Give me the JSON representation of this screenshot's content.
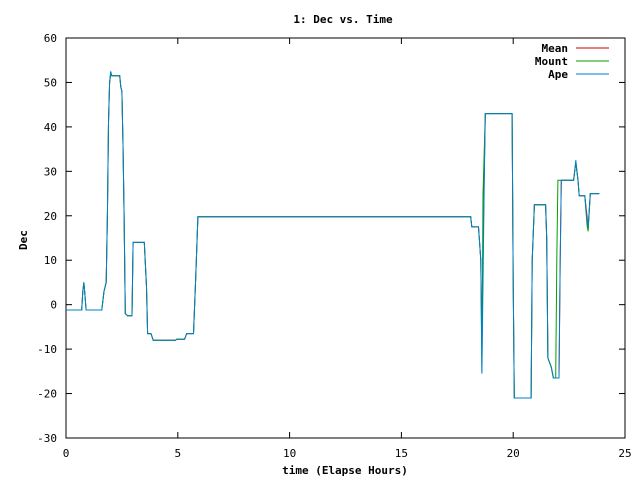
{
  "chart_data": {
    "type": "line",
    "title": "1: Dec vs. Time",
    "xlabel": "time (Elapse Hours)",
    "ylabel": "Dec",
    "xlim": [
      0,
      25
    ],
    "ylim": [
      -30,
      60
    ],
    "xticks": [
      0,
      5,
      10,
      15,
      20,
      25
    ],
    "yticks": [
      -30,
      -20,
      -10,
      0,
      10,
      20,
      30,
      40,
      50,
      60
    ],
    "grid": false,
    "legend_position": "top-right",
    "series": [
      {
        "name": "Mean",
        "color": "#cc0000",
        "points": [
          [
            0,
            -1.2
          ],
          [
            0.7,
            -1.2
          ],
          [
            0.75,
            3
          ],
          [
            0.8,
            5
          ],
          [
            0.85,
            2
          ],
          [
            0.9,
            -1.2
          ],
          [
            1.6,
            -1.2
          ],
          [
            1.7,
            3
          ],
          [
            1.8,
            5
          ],
          [
            1.85,
            20
          ],
          [
            1.9,
            41
          ],
          [
            1.95,
            50
          ],
          [
            2.0,
            52
          ],
          [
            2.05,
            51.5
          ],
          [
            2.4,
            51.5
          ],
          [
            2.45,
            49
          ],
          [
            2.5,
            48
          ],
          [
            2.55,
            36
          ],
          [
            2.6,
            20
          ],
          [
            2.65,
            -2
          ],
          [
            2.75,
            -2.5
          ],
          [
            2.95,
            -2.5
          ],
          [
            3.0,
            14
          ],
          [
            3.5,
            14
          ],
          [
            3.6,
            4
          ],
          [
            3.65,
            -6.5
          ],
          [
            3.8,
            -6.5
          ],
          [
            3.9,
            -8
          ],
          [
            4.9,
            -8
          ],
          [
            4.95,
            -7.8
          ],
          [
            5.3,
            -7.8
          ],
          [
            5.4,
            -6.5
          ],
          [
            5.7,
            -6.5
          ],
          [
            5.8,
            6
          ],
          [
            5.9,
            19.8
          ],
          [
            18.1,
            19.8
          ],
          [
            18.15,
            17.5
          ],
          [
            18.45,
            17.5
          ],
          [
            18.55,
            10
          ],
          [
            18.6,
            -7
          ],
          [
            18.7,
            28
          ],
          [
            18.75,
            43
          ],
          [
            19.95,
            43
          ],
          [
            20.0,
            5
          ],
          [
            20.05,
            -21
          ],
          [
            20.8,
            -21
          ],
          [
            20.85,
            10
          ],
          [
            20.95,
            22.5
          ],
          [
            21.45,
            22.5
          ],
          [
            21.5,
            15
          ],
          [
            21.55,
            -12
          ],
          [
            21.7,
            -14
          ],
          [
            21.8,
            -16.5
          ],
          [
            22.05,
            -16.5
          ],
          [
            22.1,
            10
          ],
          [
            22.15,
            28
          ],
          [
            22.7,
            28
          ],
          [
            22.75,
            30
          ],
          [
            22.8,
            32
          ],
          [
            22.9,
            28
          ],
          [
            22.95,
            24.5
          ],
          [
            23.2,
            24.5
          ],
          [
            23.3,
            20
          ],
          [
            23.35,
            17
          ],
          [
            23.45,
            25
          ],
          [
            23.85,
            25
          ]
        ]
      },
      {
        "name": "Mount",
        "color": "#00a000",
        "points": [
          [
            0,
            -1.2
          ],
          [
            0.7,
            -1.2
          ],
          [
            0.75,
            3
          ],
          [
            0.8,
            5
          ],
          [
            0.85,
            2
          ],
          [
            0.9,
            -1.2
          ],
          [
            1.6,
            -1.2
          ],
          [
            1.7,
            3
          ],
          [
            1.8,
            5
          ],
          [
            1.85,
            20
          ],
          [
            1.9,
            41
          ],
          [
            1.95,
            50
          ],
          [
            2.0,
            52
          ],
          [
            2.05,
            51.5
          ],
          [
            2.4,
            51.5
          ],
          [
            2.45,
            49
          ],
          [
            2.5,
            48
          ],
          [
            2.55,
            36
          ],
          [
            2.6,
            20
          ],
          [
            2.65,
            -2
          ],
          [
            2.75,
            -2.5
          ],
          [
            2.95,
            -2.5
          ],
          [
            3.0,
            14
          ],
          [
            3.5,
            14
          ],
          [
            3.6,
            4
          ],
          [
            3.65,
            -6.5
          ],
          [
            3.8,
            -6.5
          ],
          [
            3.9,
            -8
          ],
          [
            4.9,
            -8
          ],
          [
            4.95,
            -7.8
          ],
          [
            5.3,
            -7.8
          ],
          [
            5.4,
            -6.5
          ],
          [
            5.7,
            -6.5
          ],
          [
            5.8,
            6
          ],
          [
            5.9,
            19.8
          ],
          [
            18.1,
            19.8
          ],
          [
            18.15,
            17.5
          ],
          [
            18.45,
            17.5
          ],
          [
            18.55,
            10
          ],
          [
            18.6,
            -15
          ],
          [
            18.65,
            25
          ],
          [
            18.75,
            43
          ],
          [
            19.95,
            43
          ],
          [
            20.0,
            5
          ],
          [
            20.05,
            -21
          ],
          [
            20.8,
            -21
          ],
          [
            20.85,
            10
          ],
          [
            20.95,
            22.5
          ],
          [
            21.45,
            22.5
          ],
          [
            21.5,
            15
          ],
          [
            21.55,
            -12
          ],
          [
            21.7,
            -14
          ],
          [
            21.8,
            -16.5
          ],
          [
            21.9,
            -16.5
          ],
          [
            21.95,
            10
          ],
          [
            22.0,
            28
          ],
          [
            22.7,
            28
          ],
          [
            22.75,
            30
          ],
          [
            22.8,
            32
          ],
          [
            22.9,
            28
          ],
          [
            22.95,
            24.5
          ],
          [
            23.2,
            24.5
          ],
          [
            23.3,
            18
          ],
          [
            23.35,
            16.5
          ],
          [
            23.45,
            25
          ],
          [
            23.85,
            25
          ]
        ]
      },
      {
        "name": "Ape",
        "color": "#0080cc",
        "points": [
          [
            0,
            -1.2
          ],
          [
            0.7,
            -1.2
          ],
          [
            0.75,
            3
          ],
          [
            0.8,
            5
          ],
          [
            0.85,
            2
          ],
          [
            0.9,
            -1.2
          ],
          [
            1.6,
            -1.2
          ],
          [
            1.7,
            3
          ],
          [
            1.8,
            5
          ],
          [
            1.85,
            20
          ],
          [
            1.9,
            41
          ],
          [
            1.95,
            50
          ],
          [
            2.0,
            52.5
          ],
          [
            2.05,
            51.5
          ],
          [
            2.4,
            51.5
          ],
          [
            2.45,
            49
          ],
          [
            2.5,
            48
          ],
          [
            2.55,
            36
          ],
          [
            2.6,
            20
          ],
          [
            2.65,
            -2
          ],
          [
            2.75,
            -2.5
          ],
          [
            2.95,
            -2.5
          ],
          [
            3.0,
            14
          ],
          [
            3.5,
            14
          ],
          [
            3.6,
            4
          ],
          [
            3.65,
            -6.5
          ],
          [
            3.8,
            -6.5
          ],
          [
            3.9,
            -8
          ],
          [
            4.9,
            -8
          ],
          [
            4.95,
            -7.8
          ],
          [
            5.3,
            -7.8
          ],
          [
            5.4,
            -6.5
          ],
          [
            5.7,
            -6.5
          ],
          [
            5.8,
            6
          ],
          [
            5.9,
            19.8
          ],
          [
            18.1,
            19.8
          ],
          [
            18.15,
            17.5
          ],
          [
            18.45,
            17.5
          ],
          [
            18.55,
            10
          ],
          [
            18.6,
            -15.5
          ],
          [
            18.7,
            25
          ],
          [
            18.75,
            43
          ],
          [
            19.95,
            43
          ],
          [
            20.0,
            5
          ],
          [
            20.05,
            -21
          ],
          [
            20.8,
            -21
          ],
          [
            20.85,
            10
          ],
          [
            20.95,
            22.5
          ],
          [
            21.45,
            22.5
          ],
          [
            21.5,
            15
          ],
          [
            21.55,
            -12
          ],
          [
            21.7,
            -14
          ],
          [
            21.8,
            -16.5
          ],
          [
            22.05,
            -16.5
          ],
          [
            22.1,
            10
          ],
          [
            22.15,
            28
          ],
          [
            22.7,
            28
          ],
          [
            22.75,
            30
          ],
          [
            22.8,
            32.5
          ],
          [
            22.9,
            28
          ],
          [
            22.95,
            24.5
          ],
          [
            23.2,
            24.5
          ],
          [
            23.3,
            19
          ],
          [
            23.35,
            17.5
          ],
          [
            23.45,
            25
          ],
          [
            23.85,
            25
          ]
        ]
      }
    ]
  }
}
